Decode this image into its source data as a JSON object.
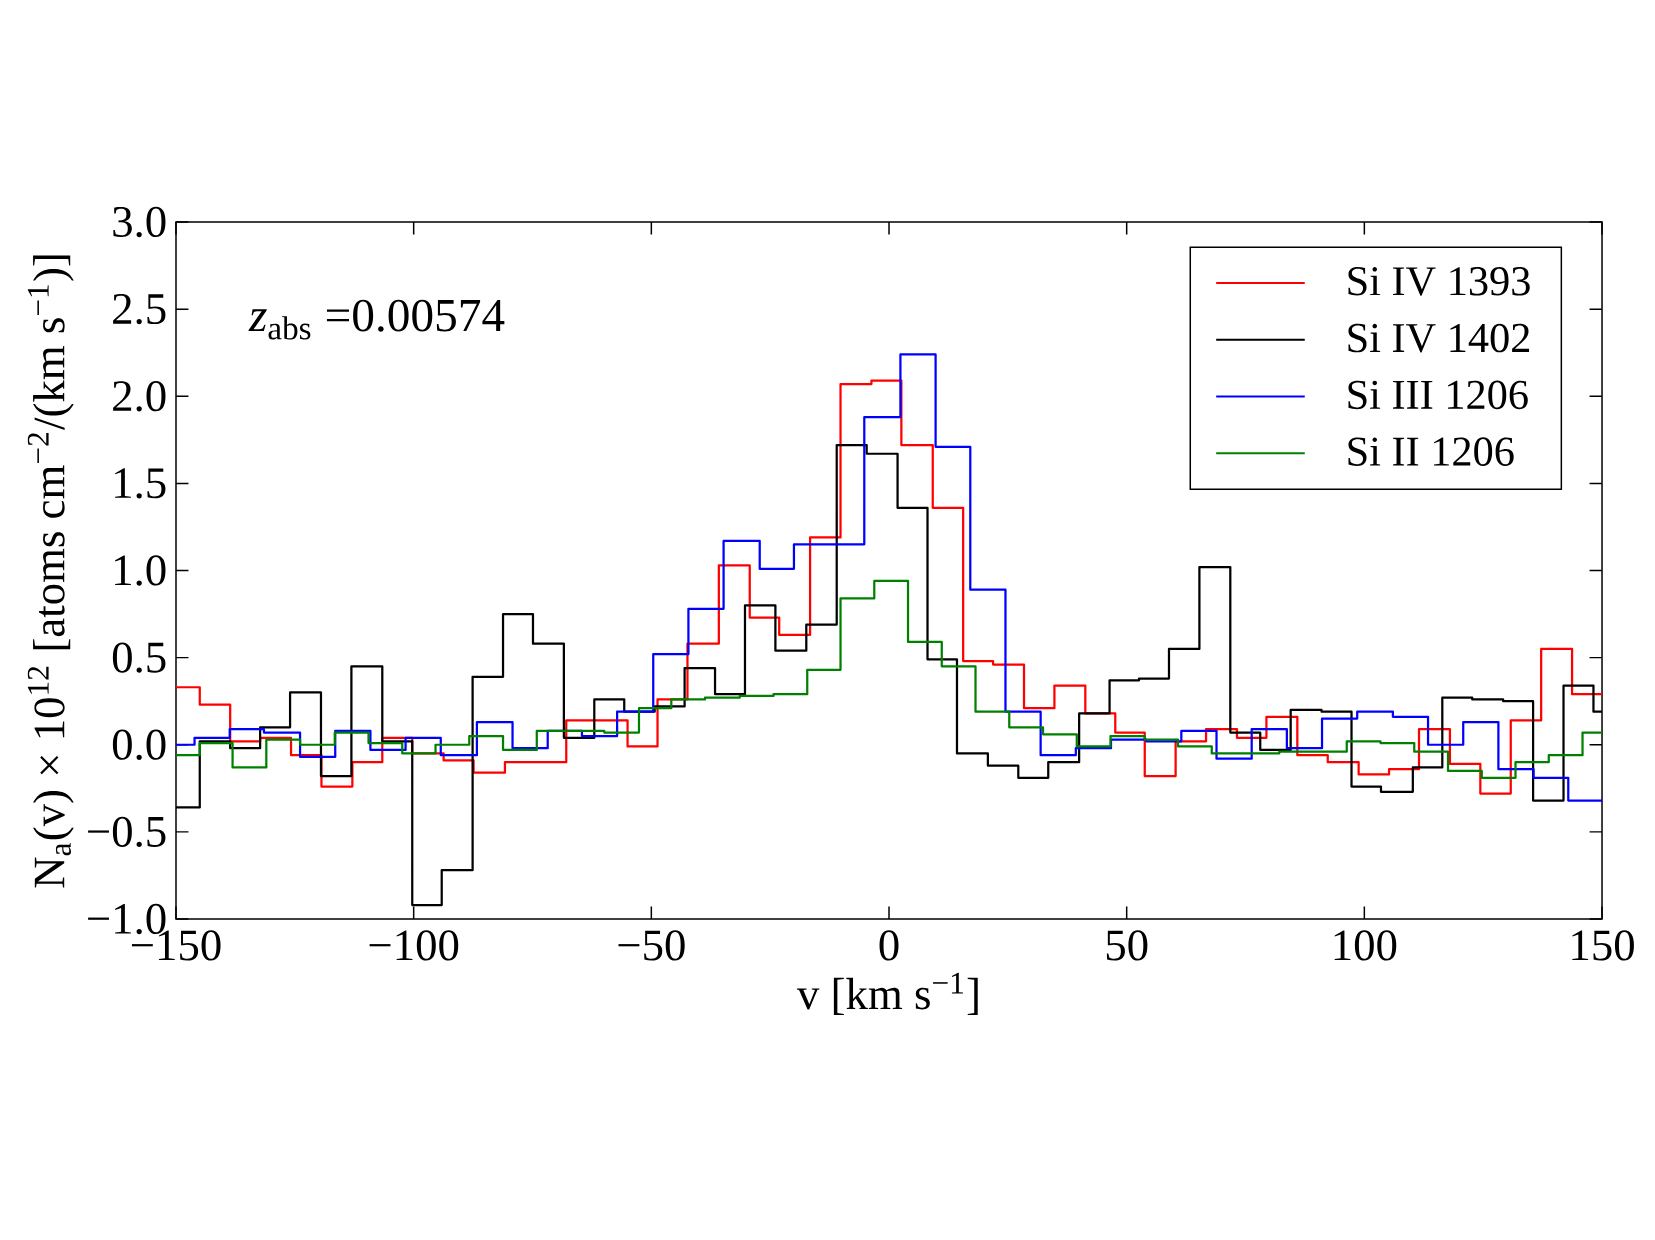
{
  "chart_data": {
    "type": "step",
    "xlabel": "v [km s$^{−1}$]",
    "ylabel": "N$_{a}$(v) × 10$^{12}$  [atoms cm$^{−2}$/(km s$^{−1}$)]",
    "annotations": [
      "*z*$_{abs}$ =0.00574"
    ],
    "xlim": [
      -150,
      150
    ],
    "xticks": [
      {
        "value": -150,
        "label": "−150"
      },
      {
        "value": -100,
        "label": "−100"
      },
      {
        "value": -50,
        "label": "−50"
      },
      {
        "value": 0,
        "label": "0"
      },
      {
        "value": 50,
        "label": "50"
      },
      {
        "value": 100,
        "label": "100"
      },
      {
        "value": 150,
        "label": "150"
      }
    ],
    "ylim": [
      -1.0,
      3.0
    ],
    "yticks": [
      {
        "value": -1.0,
        "label": "−1.0"
      },
      {
        "value": -0.5,
        "label": "−0.5"
      },
      {
        "value": 0.0,
        "label": "0.0"
      },
      {
        "value": 0.5,
        "label": "0.5"
      },
      {
        "value": 1.0,
        "label": "1.0"
      },
      {
        "value": 1.5,
        "label": "1.5"
      },
      {
        "value": 2.0,
        "label": "2.0"
      },
      {
        "value": 2.5,
        "label": "2.5"
      },
      {
        "value": 3.0,
        "label": "3.0"
      }
    ],
    "legend": "top right",
    "series": [
      {
        "name": "Si IV 1393",
        "color": "#ff0000",
        "x": [
          -150,
          -145.0,
          -138.6,
          -132.3,
          -125.8,
          -119.4,
          -112.9,
          -106.6,
          -100.3,
          -93.7,
          -87.4,
          -80.8,
          -74.4,
          -67.9,
          -61.6,
          -55.0,
          -48.7,
          -42.4,
          -35.8,
          -29.3,
          -23.1,
          -16.6,
          -10.2,
          -3.7,
          2.6,
          9.2,
          15.6,
          21.9,
          28.4,
          34.8,
          41.3,
          47.6,
          53.8,
          60.3,
          66.7,
          73.2,
          79.4,
          85.9,
          92.3,
          98.8,
          105.2,
          111.5,
          118.0,
          124.4,
          130.8,
          137.2,
          143.7
        ],
        "values": [
          0.33,
          0.23,
          0.02,
          0.04,
          -0.06,
          -0.24,
          -0.1,
          0.04,
          -0.05,
          -0.09,
          -0.16,
          -0.1,
          -0.1,
          0.14,
          0.14,
          -0.01,
          0.26,
          0.58,
          1.03,
          0.73,
          0.63,
          1.19,
          2.07,
          2.09,
          1.72,
          1.36,
          0.48,
          0.46,
          0.21,
          0.34,
          0.18,
          0.07,
          -0.18,
          0.02,
          0.09,
          0.04,
          0.16,
          -0.06,
          -0.1,
          -0.17,
          -0.14,
          0.09,
          -0.11,
          -0.28,
          0.14,
          0.55,
          0.29
        ]
      },
      {
        "name": "Si IV 1402",
        "color": "#000000",
        "x": [
          -150,
          -145.0,
          -138.6,
          -132.3,
          -126.0,
          -119.5,
          -113.1,
          -106.6,
          -100.3,
          -94.1,
          -87.6,
          -81.2,
          -74.9,
          -68.4,
          -62.0,
          -55.7,
          -49.3,
          -43.0,
          -36.6,
          -30.3,
          -23.9,
          -17.4,
          -11.0,
          -4.7,
          1.8,
          8.1,
          14.3,
          20.8,
          27.2,
          33.5,
          40.0,
          46.4,
          52.6,
          58.9,
          65.3,
          71.8,
          78.1,
          84.5,
          91.0,
          97.3,
          103.5,
          110.2,
          116.4,
          122.7,
          129.2,
          135.5,
          141.9,
          148.2
        ],
        "values": [
          -0.36,
          0.02,
          -0.02,
          0.1,
          0.3,
          -0.18,
          0.45,
          0.02,
          -0.92,
          -0.72,
          0.39,
          0.75,
          0.58,
          0.04,
          0.26,
          0.19,
          0.22,
          0.44,
          0.29,
          0.8,
          0.54,
          0.69,
          1.72,
          1.67,
          1.36,
          0.49,
          -0.05,
          -0.12,
          -0.19,
          -0.1,
          0.18,
          0.37,
          0.38,
          0.55,
          1.02,
          0.07,
          -0.03,
          0.2,
          0.19,
          -0.24,
          -0.27,
          -0.13,
          0.27,
          0.26,
          0.25,
          -0.32,
          0.34,
          0.19
        ]
      },
      {
        "name": "Si III 1206",
        "color": "#0000ff",
        "x": [
          -150,
          -146.1,
          -138.7,
          -131.5,
          -123.9,
          -116.5,
          -109.1,
          -101.7,
          -94.3,
          -86.7,
          -79.2,
          -71.8,
          -64.6,
          -57.2,
          -49.6,
          -42.2,
          -34.8,
          -27.2,
          -20.0,
          -12.6,
          -5.2,
          2.4,
          9.8,
          17.1,
          24.5,
          31.9,
          39.3,
          46.7,
          54.1,
          61.5,
          68.9,
          76.3,
          83.7,
          91.1,
          98.5,
          106.0,
          113.4,
          120.8,
          128.2,
          135.6,
          142.9
        ],
        "values": [
          0.0,
          0.04,
          0.09,
          0.07,
          -0.07,
          0.08,
          -0.03,
          0.04,
          -0.06,
          0.13,
          -0.02,
          0.08,
          0.05,
          0.19,
          0.52,
          0.78,
          1.17,
          1.01,
          1.15,
          1.15,
          1.88,
          2.24,
          1.71,
          0.89,
          0.19,
          -0.06,
          -0.02,
          0.03,
          0.02,
          0.08,
          -0.08,
          0.09,
          -0.02,
          0.15,
          0.19,
          0.16,
          0.0,
          0.13,
          -0.14,
          -0.19,
          -0.32
        ]
      },
      {
        "name": "Si II 1206",
        "color": "#008000",
        "x": [
          -150,
          -145.0,
          -138.1,
          -131.0,
          -123.9,
          -116.6,
          -109.5,
          -102.4,
          -95.4,
          -88.3,
          -81.2,
          -74.1,
          -67.0,
          -59.9,
          -52.6,
          -45.8,
          -38.7,
          -31.4,
          -24.3,
          -17.2,
          -10.2,
          -3.1,
          4.0,
          11.1,
          18.2,
          25.3,
          32.4,
          39.5,
          46.6,
          53.8,
          60.8,
          67.9,
          75.0,
          82.1,
          89.2,
          96.3,
          103.4,
          110.5,
          117.6,
          124.7,
          131.8,
          138.8,
          145.9
        ],
        "values": [
          -0.06,
          0.01,
          -0.13,
          0.03,
          0.0,
          0.07,
          0.01,
          -0.05,
          0.0,
          0.05,
          -0.03,
          0.08,
          0.08,
          0.07,
          0.21,
          0.26,
          0.27,
          0.28,
          0.29,
          0.43,
          0.84,
          0.94,
          0.59,
          0.45,
          0.19,
          0.1,
          0.06,
          -0.01,
          0.05,
          0.03,
          -0.01,
          -0.05,
          -0.05,
          -0.04,
          -0.04,
          0.02,
          0.01,
          -0.04,
          -0.15,
          -0.19,
          -0.1,
          -0.06,
          0.07
        ]
      }
    ]
  }
}
